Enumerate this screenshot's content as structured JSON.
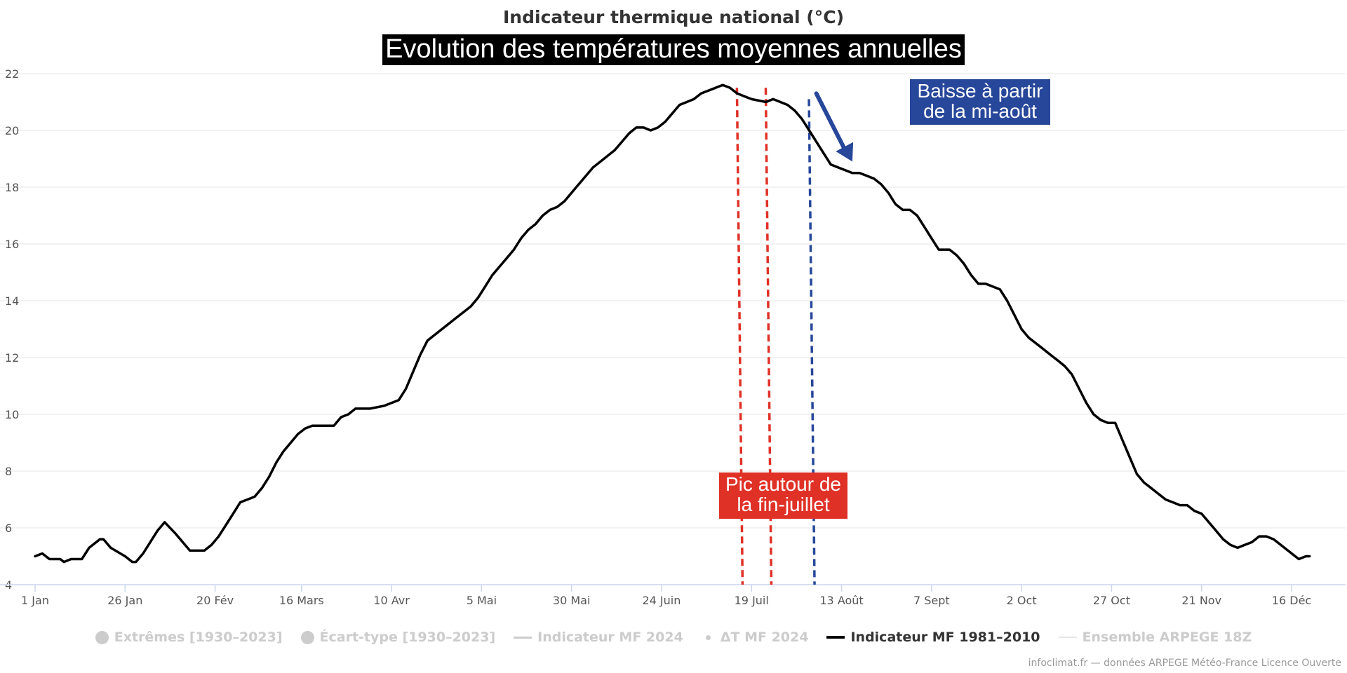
{
  "chart_data": {
    "type": "line",
    "title": "Indicateur thermique national (°C)",
    "subtitle": "Evolution des températures moyennes annuelles",
    "xlabel": "",
    "ylabel": "",
    "x_unit": "day of year",
    "x_range": [
      1,
      365
    ],
    "ylim": [
      4,
      22
    ],
    "y_ticks": [
      4,
      6,
      8,
      10,
      12,
      14,
      16,
      18,
      20,
      22
    ],
    "x_ticks": [
      {
        "day": 1,
        "label": "1 Jan"
      },
      {
        "day": 26,
        "label": "26 Jan"
      },
      {
        "day": 51,
        "label": "20 Fév"
      },
      {
        "day": 75,
        "label": "16 Mars"
      },
      {
        "day": 100,
        "label": "10 Avr"
      },
      {
        "day": 125,
        "label": "5 Mai"
      },
      {
        "day": 150,
        "label": "30 Mai"
      },
      {
        "day": 175,
        "label": "24 Juin"
      },
      {
        "day": 200,
        "label": "19 Juil"
      },
      {
        "day": 225,
        "label": "13 Août"
      },
      {
        "day": 250,
        "label": "7 Sept"
      },
      {
        "day": 275,
        "label": "2 Oct"
      },
      {
        "day": 300,
        "label": "27 Oct"
      },
      {
        "day": 325,
        "label": "21 Nov"
      },
      {
        "day": 350,
        "label": "16 Déc"
      }
    ],
    "grid": true,
    "series": [
      {
        "name": "Indicateur MF 1981-2010",
        "color": "#000000",
        "points": [
          [
            1,
            5.0
          ],
          [
            3,
            5.1
          ],
          [
            5,
            4.9
          ],
          [
            8,
            4.9
          ],
          [
            9,
            4.8
          ],
          [
            11,
            4.9
          ],
          [
            14,
            4.9
          ],
          [
            16,
            5.3
          ],
          [
            19,
            5.6
          ],
          [
            20,
            5.6
          ],
          [
            22,
            5.3
          ],
          [
            26,
            5.0
          ],
          [
            28,
            4.8
          ],
          [
            29,
            4.8
          ],
          [
            31,
            5.1
          ],
          [
            33,
            5.5
          ],
          [
            35,
            5.9
          ],
          [
            37,
            6.2
          ],
          [
            40,
            5.8
          ],
          [
            42,
            5.5
          ],
          [
            44,
            5.2
          ],
          [
            48,
            5.2
          ],
          [
            50,
            5.4
          ],
          [
            52,
            5.7
          ],
          [
            54,
            6.1
          ],
          [
            56,
            6.5
          ],
          [
            58,
            6.9
          ],
          [
            60,
            7.0
          ],
          [
            62,
            7.1
          ],
          [
            64,
            7.4
          ],
          [
            66,
            7.8
          ],
          [
            68,
            8.3
          ],
          [
            70,
            8.7
          ],
          [
            72,
            9.0
          ],
          [
            74,
            9.3
          ],
          [
            76,
            9.5
          ],
          [
            78,
            9.6
          ],
          [
            84,
            9.6
          ],
          [
            86,
            9.9
          ],
          [
            88,
            10.0
          ],
          [
            90,
            10.2
          ],
          [
            94,
            10.2
          ],
          [
            98,
            10.3
          ],
          [
            100,
            10.4
          ],
          [
            102,
            10.5
          ],
          [
            104,
            10.9
          ],
          [
            106,
            11.5
          ],
          [
            108,
            12.1
          ],
          [
            110,
            12.6
          ],
          [
            114,
            13.0
          ],
          [
            118,
            13.4
          ],
          [
            120,
            13.6
          ],
          [
            122,
            13.8
          ],
          [
            124,
            14.1
          ],
          [
            126,
            14.5
          ],
          [
            128,
            14.9
          ],
          [
            130,
            15.2
          ],
          [
            132,
            15.5
          ],
          [
            134,
            15.8
          ],
          [
            136,
            16.2
          ],
          [
            138,
            16.5
          ],
          [
            140,
            16.7
          ],
          [
            142,
            17.0
          ],
          [
            144,
            17.2
          ],
          [
            146,
            17.3
          ],
          [
            148,
            17.5
          ],
          [
            150,
            17.8
          ],
          [
            152,
            18.1
          ],
          [
            154,
            18.4
          ],
          [
            156,
            18.7
          ],
          [
            158,
            18.9
          ],
          [
            160,
            19.1
          ],
          [
            162,
            19.3
          ],
          [
            164,
            19.6
          ],
          [
            166,
            19.9
          ],
          [
            168,
            20.1
          ],
          [
            170,
            20.1
          ],
          [
            172,
            20.0
          ],
          [
            174,
            20.1
          ],
          [
            176,
            20.3
          ],
          [
            178,
            20.6
          ],
          [
            180,
            20.9
          ],
          [
            182,
            21.0
          ],
          [
            184,
            21.1
          ],
          [
            186,
            21.3
          ],
          [
            188,
            21.4
          ],
          [
            190,
            21.5
          ],
          [
            192,
            21.6
          ],
          [
            194,
            21.5
          ],
          [
            196,
            21.3
          ],
          [
            198,
            21.2
          ],
          [
            200,
            21.1
          ],
          [
            204,
            21.0
          ],
          [
            206,
            21.1
          ],
          [
            208,
            21.0
          ],
          [
            210,
            20.9
          ],
          [
            212,
            20.7
          ],
          [
            214,
            20.4
          ],
          [
            216,
            20.0
          ],
          [
            218,
            19.6
          ],
          [
            220,
            19.2
          ],
          [
            222,
            18.8
          ],
          [
            224,
            18.7
          ],
          [
            226,
            18.6
          ],
          [
            228,
            18.5
          ],
          [
            230,
            18.5
          ],
          [
            232,
            18.4
          ],
          [
            234,
            18.3
          ],
          [
            236,
            18.1
          ],
          [
            238,
            17.8
          ],
          [
            240,
            17.4
          ],
          [
            242,
            17.2
          ],
          [
            244,
            17.2
          ],
          [
            246,
            17.0
          ],
          [
            248,
            16.6
          ],
          [
            250,
            16.2
          ],
          [
            252,
            15.8
          ],
          [
            255,
            15.8
          ],
          [
            257,
            15.6
          ],
          [
            259,
            15.3
          ],
          [
            261,
            14.9
          ],
          [
            263,
            14.6
          ],
          [
            265,
            14.6
          ],
          [
            267,
            14.5
          ],
          [
            269,
            14.4
          ],
          [
            271,
            14.0
          ],
          [
            273,
            13.5
          ],
          [
            275,
            13.0
          ],
          [
            277,
            12.7
          ],
          [
            279,
            12.5
          ],
          [
            281,
            12.3
          ],
          [
            283,
            12.1
          ],
          [
            285,
            11.9
          ],
          [
            287,
            11.7
          ],
          [
            289,
            11.4
          ],
          [
            291,
            10.9
          ],
          [
            293,
            10.4
          ],
          [
            295,
            10.0
          ],
          [
            297,
            9.8
          ],
          [
            299,
            9.7
          ],
          [
            301,
            9.7
          ],
          [
            303,
            9.1
          ],
          [
            305,
            8.5
          ],
          [
            307,
            7.9
          ],
          [
            309,
            7.6
          ],
          [
            311,
            7.4
          ],
          [
            313,
            7.2
          ],
          [
            315,
            7.0
          ],
          [
            317,
            6.9
          ],
          [
            319,
            6.8
          ],
          [
            321,
            6.8
          ],
          [
            323,
            6.6
          ],
          [
            325,
            6.5
          ],
          [
            327,
            6.2
          ],
          [
            329,
            5.9
          ],
          [
            331,
            5.6
          ],
          [
            333,
            5.4
          ],
          [
            335,
            5.3
          ],
          [
            337,
            5.4
          ],
          [
            339,
            5.5
          ],
          [
            341,
            5.7
          ],
          [
            343,
            5.7
          ],
          [
            345,
            5.6
          ],
          [
            347,
            5.4
          ],
          [
            349,
            5.2
          ],
          [
            351,
            5.0
          ],
          [
            352,
            4.9
          ],
          [
            354,
            5.0
          ],
          [
            355,
            5.0
          ]
        ]
      }
    ],
    "vertical_markers": [
      {
        "day": 197.5,
        "color": "#e03127",
        "style": "dashed",
        "y_top": 21.5
      },
      {
        "day": 205.5,
        "color": "#e03127",
        "style": "dashed",
        "y_top": 21.5
      },
      {
        "day": 217.5,
        "color": "#27479a",
        "style": "dashed",
        "y_top": 21.1
      }
    ],
    "annotations": [
      {
        "lines": [
          "Pic autour de",
          "la fin-juillet"
        ],
        "color": "#e03127"
      },
      {
        "lines": [
          "Baisse à partir",
          "de la mi-août"
        ],
        "color": "#27479a",
        "arrow_from": {
          "day": 218,
          "y": 21.3
        },
        "arrow_to": {
          "day": 228,
          "y": 18.9
        }
      }
    ],
    "legend": [
      {
        "label": "Extrêmes [1930–2023]",
        "symbol": "dot",
        "active": false
      },
      {
        "label": "Écart-type [1930–2023]",
        "symbol": "dot",
        "active": false
      },
      {
        "label": "Indicateur MF 2024",
        "symbol": "line",
        "active": false
      },
      {
        "label": "ΔT MF 2024",
        "symbol": "small-dot",
        "active": false
      },
      {
        "label": "Indicateur MF 1981–2010",
        "symbol": "line",
        "active": true
      },
      {
        "label": "Ensemble ARPEGE 18Z",
        "symbol": "thin-line",
        "active": false
      }
    ],
    "legend_position": "bottom-center"
  },
  "credits": "infoclimat.fr — données ARPEGE Météo-France Licence Ouverte",
  "colors": {
    "grid": "#e6e6e6",
    "axis": "#ccd6eb",
    "tick_text": "#555555",
    "peak": "#e03127",
    "drop": "#27479a"
  }
}
